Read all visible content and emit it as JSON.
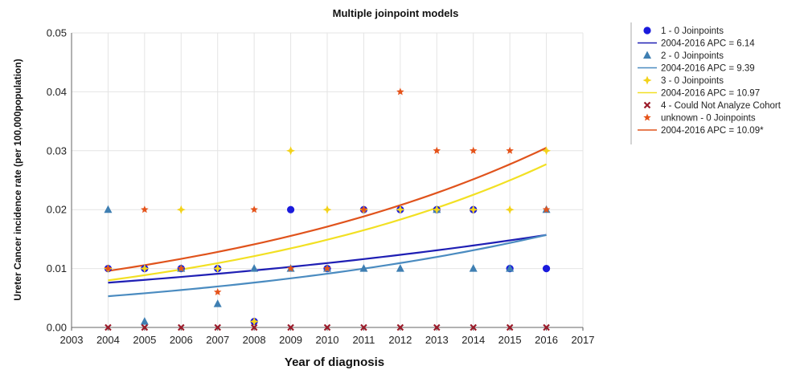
{
  "chart_data": {
    "type": "scatter",
    "title": "Multiple joinpoint models",
    "xlabel": "Year of diagnosis",
    "ylabel": "Ureter Cancer incidence rate (per 100,000population)",
    "xlim": [
      2003,
      2017
    ],
    "ylim": [
      0,
      0.05
    ],
    "x_ticks": [
      2003,
      2004,
      2005,
      2006,
      2007,
      2008,
      2009,
      2010,
      2011,
      2012,
      2013,
      2014,
      2015,
      2016,
      2017
    ],
    "y_ticks": [
      "0.00",
      "0.01",
      "0.02",
      "0.03",
      "0.04",
      "0.05"
    ],
    "grid": true,
    "legend_position": "right",
    "series": [
      {
        "name": "1 - 0 Joinpoints",
        "marker": "circle",
        "color": "#1a1adc",
        "x": [
          2004,
          2005,
          2006,
          2007,
          2008,
          2009,
          2010,
          2011,
          2012,
          2013,
          2014,
          2015,
          2016
        ],
        "y": [
          0.01,
          0.01,
          0.01,
          0.01,
          0.001,
          0.02,
          0.01,
          0.02,
          0.02,
          0.02,
          0.02,
          0.01,
          0.01
        ],
        "fit_label": "2004-2016 APC  = 6.14",
        "fit_color": "#1f1fb4",
        "fit": [
          0.0076,
          0.0157
        ]
      },
      {
        "name": "2 - 0 Joinpoints",
        "marker": "triangle",
        "color": "#3f7fb2",
        "x": [
          2004,
          2005,
          2006,
          2007,
          2008,
          2009,
          2010,
          2011,
          2012,
          2013,
          2014,
          2015,
          2016
        ],
        "y": [
          0.02,
          0.001,
          0.01,
          0.004,
          0.01,
          0.01,
          0.01,
          0.01,
          0.01,
          0.02,
          0.01,
          0.01,
          0.02
        ],
        "fit_label": "2004-2016 APC  = 9.39",
        "fit_color": "#4a8bc0",
        "fit": [
          0.0053,
          0.0157
        ]
      },
      {
        "name": "3 - 0 Joinpoints",
        "marker": "diamond",
        "color": "#f2d21b",
        "x": [
          2004,
          2005,
          2006,
          2007,
          2008,
          2009,
          2010,
          2011,
          2012,
          2013,
          2014,
          2015,
          2016
        ],
        "y": [
          0.01,
          0.01,
          0.02,
          0.01,
          0.001,
          0.03,
          0.02,
          0.02,
          0.02,
          0.02,
          0.02,
          0.02,
          0.03
        ],
        "fit_label": "2004-2016 APC  = 10.97",
        "fit_color": "#f2e023",
        "fit": [
          0.008,
          0.0277
        ]
      },
      {
        "name": "4 - Could Not Analyze Cohort",
        "marker": "x",
        "color": "#9b1b2a",
        "x": [
          2004,
          2005,
          2006,
          2007,
          2008,
          2009,
          2010,
          2011,
          2012,
          2013,
          2014,
          2015,
          2016
        ],
        "y": [
          0,
          0,
          0,
          0,
          0,
          0,
          0,
          0,
          0,
          0,
          0,
          0,
          0
        ]
      },
      {
        "name": "unknown - 0 Joinpoints",
        "marker": "star",
        "color": "#e5531a",
        "x": [
          2004,
          2005,
          2006,
          2007,
          2008,
          2009,
          2010,
          2011,
          2012,
          2013,
          2014,
          2015,
          2016
        ],
        "y": [
          0.01,
          0.02,
          0.01,
          0.006,
          0.02,
          0.01,
          0.01,
          0.02,
          0.04,
          0.03,
          0.03,
          0.03,
          0.02
        ],
        "fit_label": "2004-2016 APC  = 10.09*",
        "fit_color": "#e0531c",
        "fit": [
          0.0096,
          0.0305
        ]
      }
    ]
  }
}
